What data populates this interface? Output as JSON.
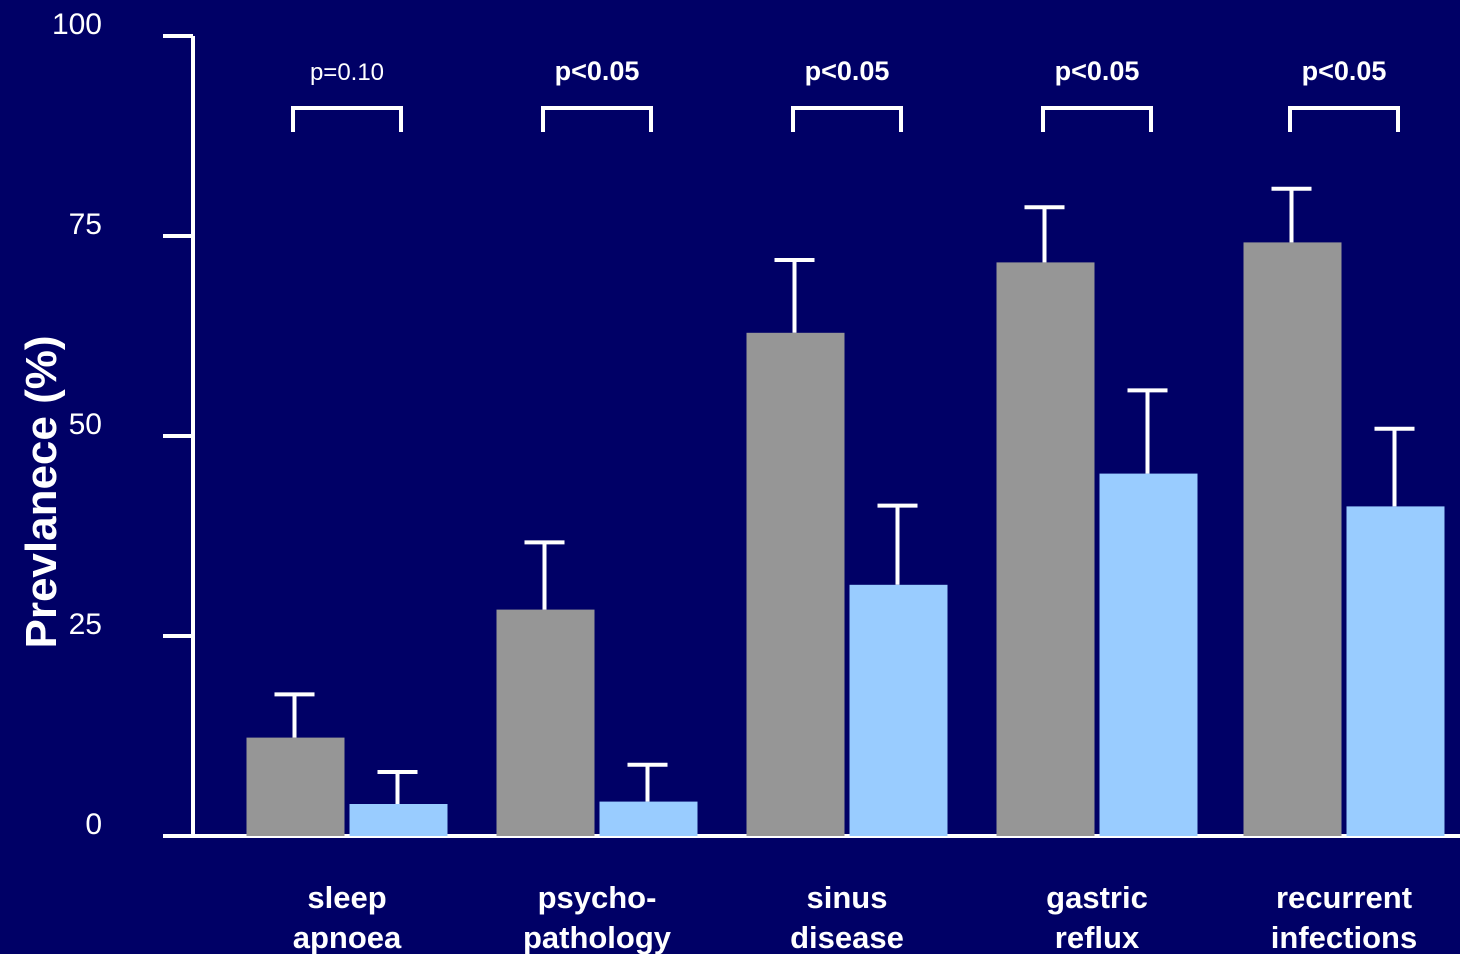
{
  "chart_data": {
    "type": "bar",
    "title": "",
    "xlabel": "",
    "ylabel": "Prevlanece (%)",
    "ylim": [
      0,
      100
    ],
    "yticks": [
      0,
      25,
      50,
      75,
      100
    ],
    "grid": false,
    "categories": [
      [
        "sleep",
        "apnoea"
      ],
      [
        "psycho-",
        "pathology"
      ],
      [
        "sinus",
        "disease"
      ],
      [
        "gastric",
        "reflux"
      ],
      [
        "recurrent",
        "infections"
      ]
    ],
    "series": [
      {
        "color": "#969696",
        "values": [
          12.3,
          28.3,
          62.9,
          71.7,
          74.2
        ],
        "error": [
          5.4,
          8.4,
          9.1,
          6.9,
          6.7
        ]
      },
      {
        "color": "#99ccff",
        "values": [
          4.0,
          4.3,
          31.4,
          45.3,
          41.2
        ],
        "error": [
          4.0,
          4.6,
          9.9,
          10.4,
          9.7
        ]
      }
    ],
    "annotations": [
      {
        "text": "p=0.10",
        "bold": false
      },
      {
        "text": "p<0.05",
        "bold": true
      },
      {
        "text": "p<0.05",
        "bold": true
      },
      {
        "text": "p<0.05",
        "bold": true
      },
      {
        "text": "p<0.05",
        "bold": true
      }
    ]
  }
}
